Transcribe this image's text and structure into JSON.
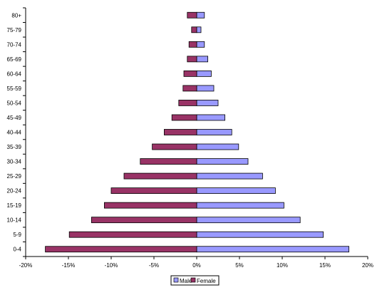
{
  "chart_data": {
    "type": "bar",
    "orientation": "horizontal",
    "layout": "population-pyramid",
    "categories": [
      "0-4",
      "5-9",
      "10-14",
      "15-19",
      "20-24",
      "25-29",
      "30-34",
      "35-39",
      "40-44",
      "45-49",
      "50-54",
      "55-59",
      "60-64",
      "65-69",
      "70-74",
      "75-79",
      "80+"
    ],
    "series": [
      {
        "name": "Male",
        "color": "#9999ff",
        "values": [
          17.8,
          14.8,
          12.1,
          10.2,
          9.2,
          7.7,
          6.0,
          4.9,
          4.1,
          3.3,
          2.5,
          2.0,
          1.7,
          1.3,
          0.9,
          0.5,
          0.9
        ]
      },
      {
        "name": "Female",
        "color": "#993366",
        "values": [
          -17.7,
          -14.9,
          -12.3,
          -10.8,
          -10.0,
          -8.5,
          -6.6,
          -5.2,
          -3.8,
          -2.9,
          -2.1,
          -1.6,
          -1.5,
          -1.1,
          -0.9,
          -0.6,
          -1.1
        ]
      }
    ],
    "xlim": [
      -20,
      20
    ],
    "xticks": [
      "-20%",
      "-15%",
      "-10%",
      "-5%",
      "0%",
      "5%",
      "10%",
      "15%",
      "20%"
    ],
    "xtick_values": [
      -20,
      -15,
      -10,
      -5,
      0,
      5,
      10,
      15,
      20
    ],
    "title": "",
    "xlabel": "",
    "ylabel": "",
    "grid": false,
    "legend_position": "bottom"
  }
}
